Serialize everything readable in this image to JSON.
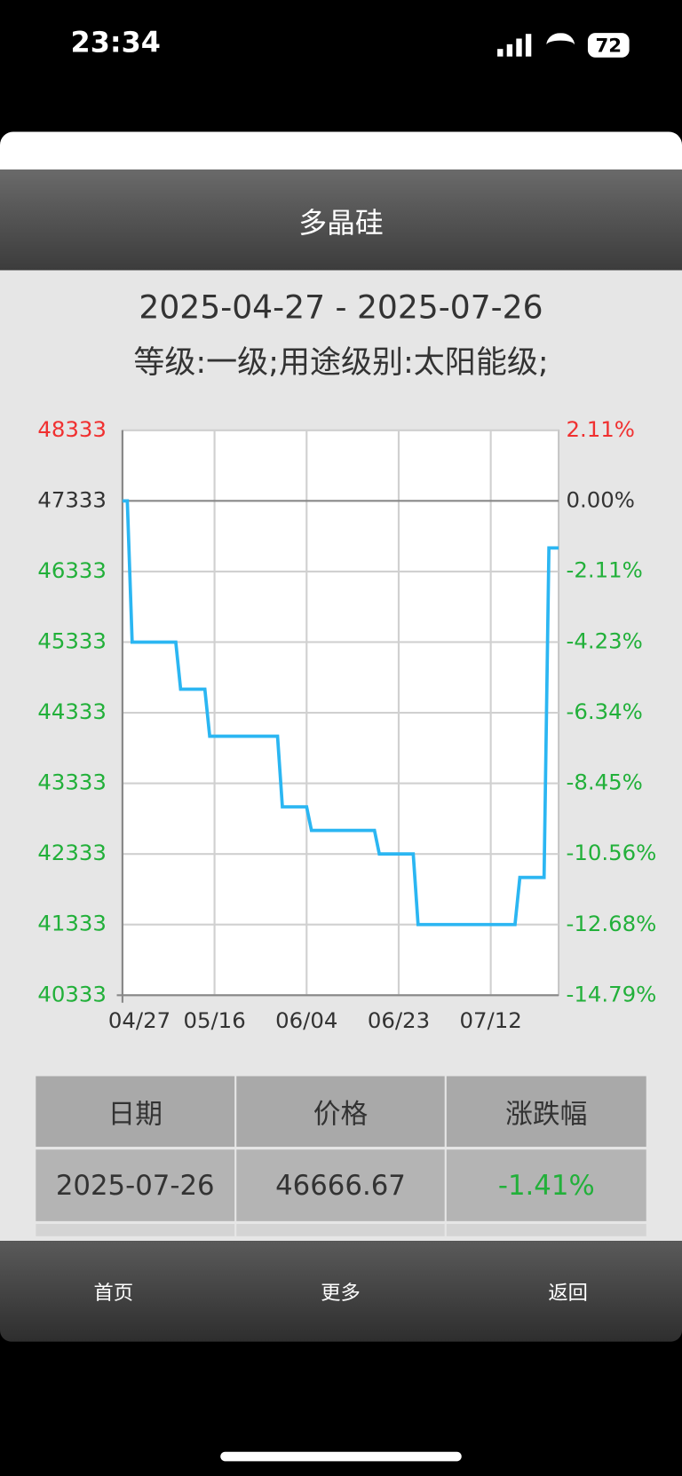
{
  "status_bar": {
    "time": "23:34",
    "battery": "72"
  },
  "header": {
    "title": "多晶硅"
  },
  "chart_data": {
    "type": "line",
    "title": "2025-04-27 - 2025-07-26",
    "subtitle": "等级:一级;用途级别:太阳能级;",
    "x": [
      "04/27",
      "04/28",
      "04/29",
      "05/08",
      "05/09",
      "05/14",
      "05/15",
      "05/29",
      "05/30",
      "06/04",
      "06/05",
      "06/18",
      "06/19",
      "06/26",
      "06/27",
      "07/17",
      "07/18",
      "07/23",
      "07/24",
      "07/26"
    ],
    "series": [
      {
        "color": "#2bb6f2",
        "values": [
          47333,
          47333,
          45333,
          45333,
          44666.67,
          44666.67,
          44000,
          44000,
          43000,
          43000,
          42666.67,
          42666.67,
          42333.33,
          42333.33,
          41333.33,
          41333.33,
          42000,
          42000,
          46666.67,
          46666.67
        ]
      }
    ],
    "xlim": [
      "04/27",
      "07/26"
    ],
    "xticks": [
      "04/27",
      "05/16",
      "06/04",
      "06/23",
      "07/12"
    ],
    "ylim": [
      40333,
      48333
    ],
    "yticks": [
      40333,
      41333,
      42333,
      43333,
      44333,
      45333,
      46333,
      47333,
      48333
    ],
    "y2lim": [
      -14.79,
      2.11
    ],
    "y2ticks": [
      {
        "value": -14.79,
        "label": "-14.79%"
      },
      {
        "value": -12.68,
        "label": "-12.68%"
      },
      {
        "value": -10.56,
        "label": "-10.56%"
      },
      {
        "value": -8.45,
        "label": "-8.45%"
      },
      {
        "value": -6.34,
        "label": "-6.34%"
      },
      {
        "value": -4.23,
        "label": "-4.23%"
      },
      {
        "value": -2.11,
        "label": "-2.11%"
      },
      {
        "value": 0,
        "label": "0.00%"
      },
      {
        "value": 2.11,
        "label": "2.11%"
      }
    ],
    "grid": true,
    "up_color": "#f03030",
    "down_color": "#22b03a",
    "flat_color": "#333333"
  },
  "table": {
    "columns": [
      "日期",
      "价格",
      "涨跌幅"
    ],
    "rows": [
      [
        "2025-07-26",
        "46666.67",
        "-1.41%"
      ]
    ]
  },
  "nav": [
    "首页",
    "更多",
    "返回"
  ]
}
